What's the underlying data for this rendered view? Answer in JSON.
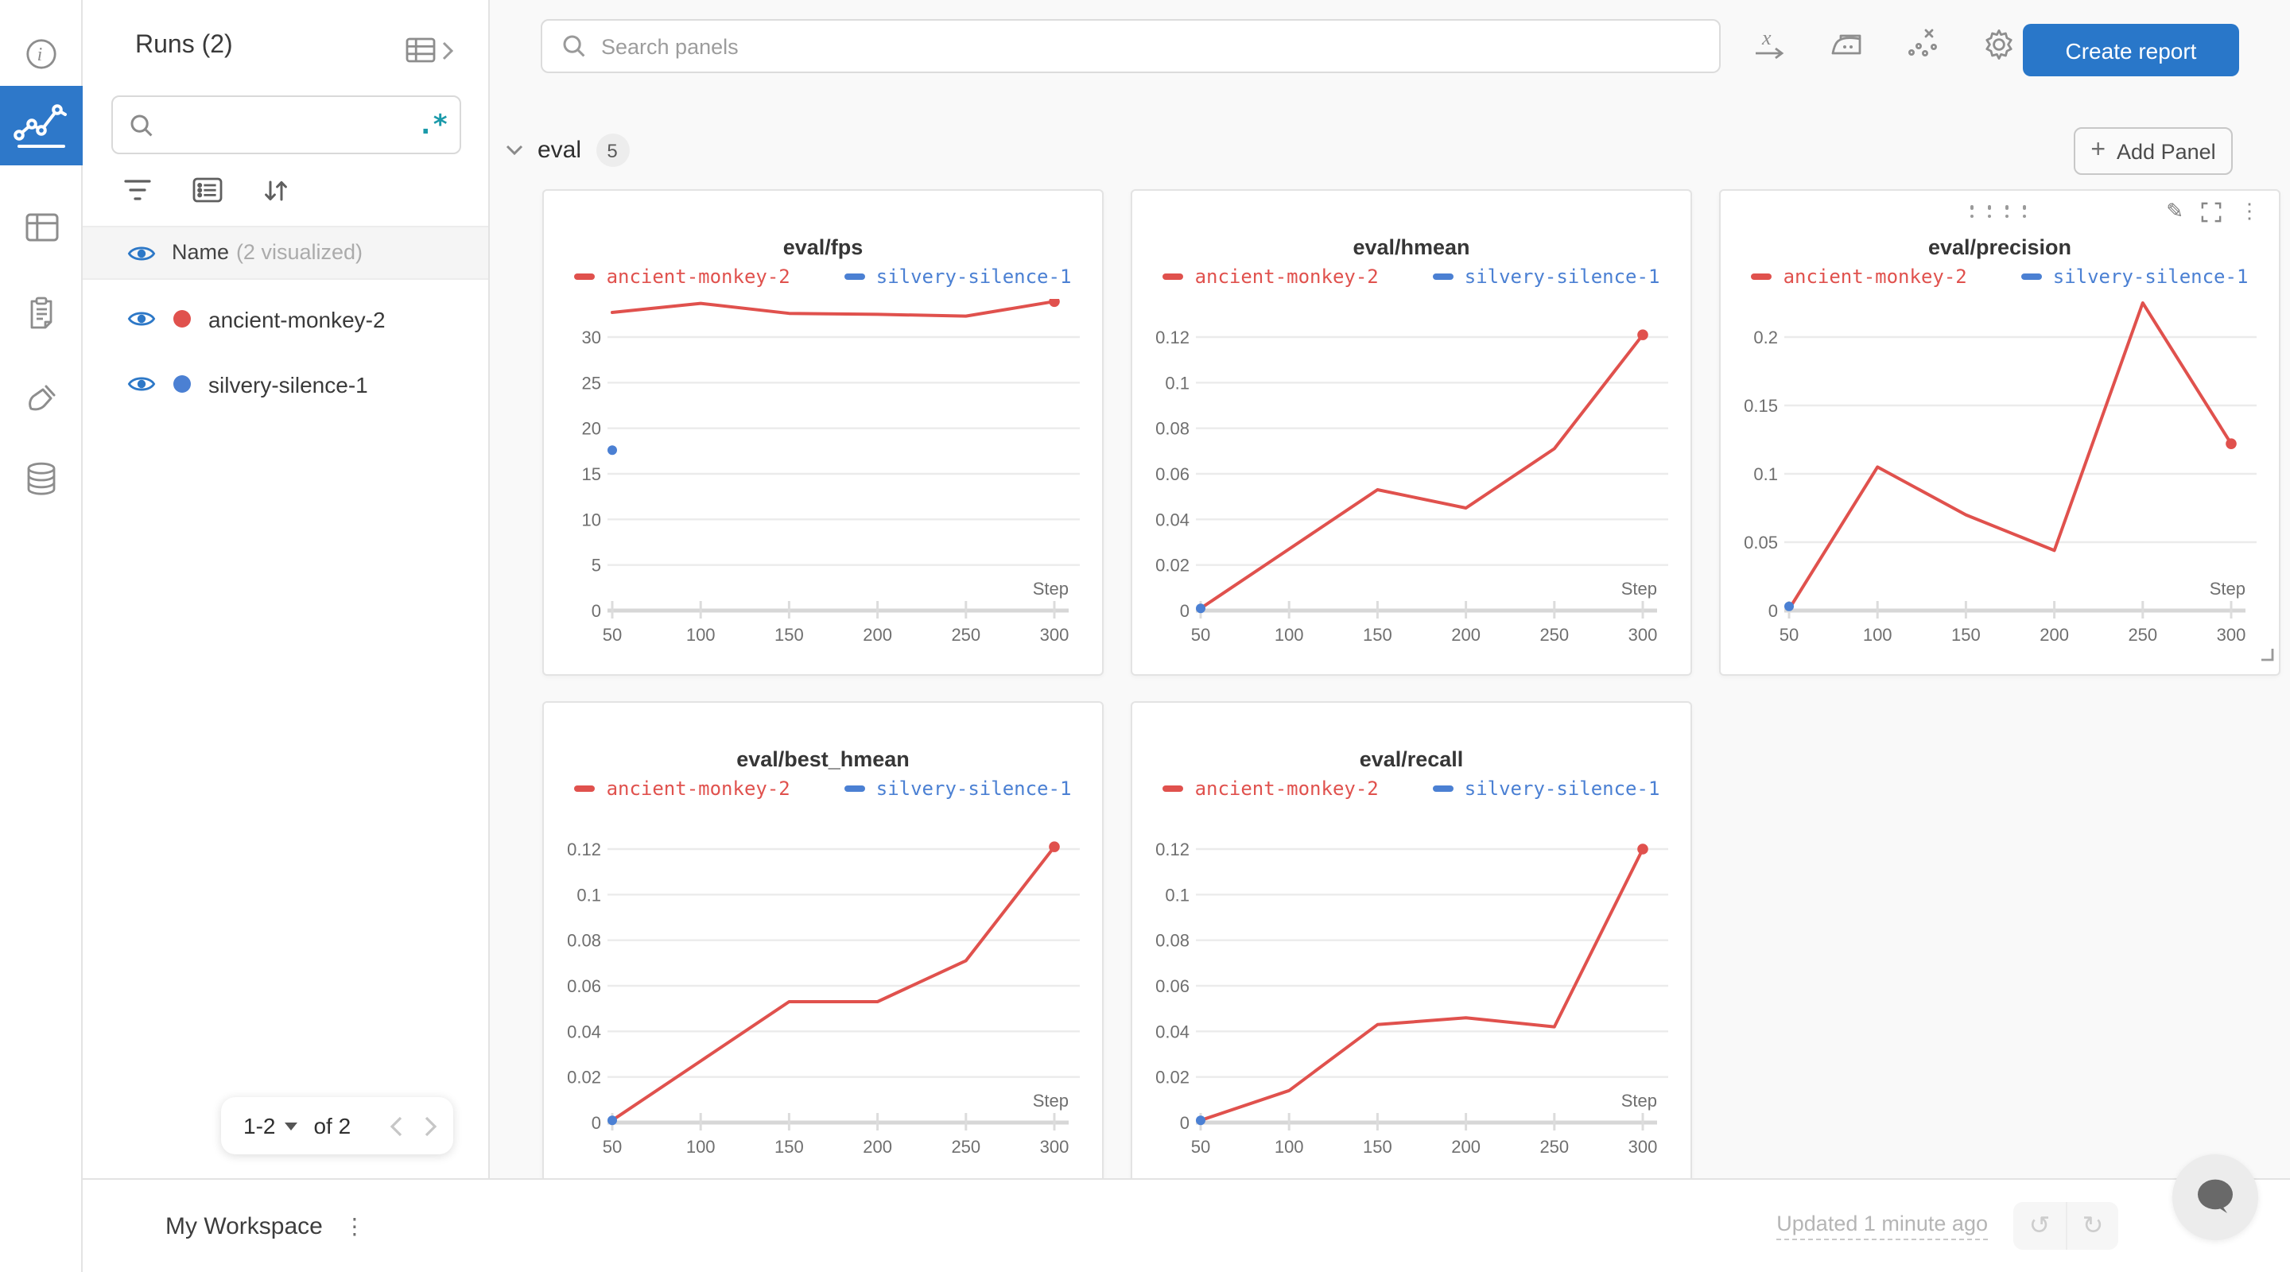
{
  "colors": {
    "accent_blue": "#2e78c9",
    "run_red": "#e0514d",
    "run_blue": "#4b80d3",
    "regex_teal": "#1b9aaa"
  },
  "rail": {
    "icons": [
      "info-icon",
      "line-chart-icon",
      "panels-icon",
      "clipboard-icon",
      "sweep-icon",
      "artifacts-icon"
    ],
    "active_icon": "line-chart-icon"
  },
  "runs_panel": {
    "title": "Runs (2)",
    "search_value": "",
    "regex_label": ".*",
    "group_label": "Name",
    "group_suffix": "(2 visualized)",
    "runs": [
      {
        "name": "ancient-monkey-2",
        "color": "#e0514d"
      },
      {
        "name": "silvery-silence-1",
        "color": "#4b80d3"
      }
    ],
    "pagination": {
      "range": "1-2",
      "of_label": "of 2"
    }
  },
  "topbar": {
    "search_placeholder": "Search panels",
    "icons": [
      "x-axis-icon",
      "smoothing-iron-icon",
      "outliers-icon",
      "settings-gear-icon"
    ],
    "create_report_label": "Create report"
  },
  "section": {
    "name": "eval",
    "count": "5",
    "add_panel_label": "Add Panel"
  },
  "footer": {
    "workspace_label": "My Workspace",
    "updated_label": "Updated 1 minute ago"
  },
  "chart_data": [
    {
      "type": "line",
      "title": "eval/fps",
      "xlabel": "Step",
      "x": [
        50,
        100,
        150,
        200,
        250,
        300
      ],
      "xticks": [
        50,
        100,
        150,
        200,
        250,
        300
      ],
      "yticks": [
        0,
        5,
        10,
        15,
        20,
        25,
        30
      ],
      "legend_position": "top",
      "grid": true,
      "series": [
        {
          "name": "ancient-monkey-2",
          "color": "#e0514d",
          "values": [
            32.7,
            33.7,
            32.6,
            32.5,
            32.3,
            33.9
          ],
          "end_dot": true
        },
        {
          "name": "silvery-silence-1",
          "color": "#4b80d3",
          "values": [
            17.6,
            null,
            null,
            null,
            null,
            null
          ]
        }
      ]
    },
    {
      "type": "line",
      "title": "eval/hmean",
      "xlabel": "Step",
      "x": [
        50,
        100,
        150,
        200,
        250,
        300
      ],
      "xticks": [
        50,
        100,
        150,
        200,
        250,
        300
      ],
      "yticks": [
        0,
        0.02,
        0.04,
        0.06,
        0.08,
        0.1,
        0.12
      ],
      "legend_position": "top",
      "grid": true,
      "series": [
        {
          "name": "ancient-monkey-2",
          "color": "#e0514d",
          "values": [
            0.001,
            0.027,
            0.053,
            0.045,
            0.071,
            0.121
          ],
          "end_dot": true
        },
        {
          "name": "silvery-silence-1",
          "color": "#4b80d3",
          "values": [
            0.001,
            null,
            null,
            null,
            null,
            null
          ]
        }
      ]
    },
    {
      "type": "line",
      "title": "eval/precision",
      "xlabel": "Step",
      "x": [
        50,
        100,
        150,
        200,
        250,
        300
      ],
      "xticks": [
        50,
        100,
        150,
        200,
        250,
        300
      ],
      "yticks": [
        0,
        0.05,
        0.1,
        0.15,
        0.2
      ],
      "legend_position": "top",
      "grid": true,
      "toolbar_visible": true,
      "series": [
        {
          "name": "ancient-monkey-2",
          "color": "#e0514d",
          "values": [
            0.001,
            0.105,
            0.07,
            0.044,
            0.225,
            0.122
          ],
          "end_dot": true
        },
        {
          "name": "silvery-silence-1",
          "color": "#4b80d3",
          "values": [
            0.003,
            null,
            null,
            null,
            null,
            null
          ]
        }
      ]
    },
    {
      "type": "line",
      "title": "eval/best_hmean",
      "xlabel": "Step",
      "x": [
        50,
        100,
        150,
        200,
        250,
        300
      ],
      "xticks": [
        50,
        100,
        150,
        200,
        250,
        300
      ],
      "yticks": [
        0,
        0.02,
        0.04,
        0.06,
        0.08,
        0.1,
        0.12
      ],
      "legend_position": "top",
      "grid": true,
      "series": [
        {
          "name": "ancient-monkey-2",
          "color": "#e0514d",
          "values": [
            0.001,
            0.027,
            0.053,
            0.053,
            0.071,
            0.121
          ],
          "end_dot": true
        },
        {
          "name": "silvery-silence-1",
          "color": "#4b80d3",
          "values": [
            0.001,
            null,
            null,
            null,
            null,
            null
          ]
        }
      ]
    },
    {
      "type": "line",
      "title": "eval/recall",
      "xlabel": "Step",
      "x": [
        50,
        100,
        150,
        200,
        250,
        300
      ],
      "xticks": [
        50,
        100,
        150,
        200,
        250,
        300
      ],
      "yticks": [
        0,
        0.02,
        0.04,
        0.06,
        0.08,
        0.1,
        0.12
      ],
      "legend_position": "top",
      "grid": true,
      "series": [
        {
          "name": "ancient-monkey-2",
          "color": "#e0514d",
          "values": [
            0.001,
            0.014,
            0.043,
            0.046,
            0.042,
            0.12
          ],
          "end_dot": true
        },
        {
          "name": "silvery-silence-1",
          "color": "#4b80d3",
          "values": [
            0.001,
            null,
            null,
            null,
            null,
            null
          ]
        }
      ]
    }
  ]
}
